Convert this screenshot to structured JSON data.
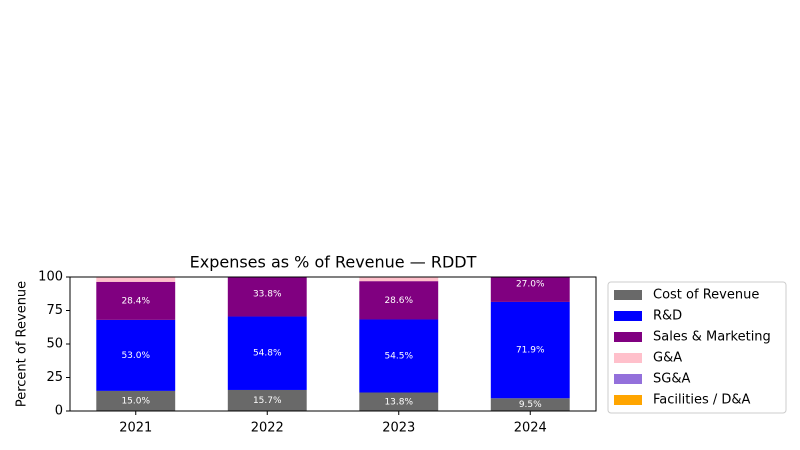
{
  "chart_data": {
    "type": "stacked_bar",
    "title": "Expenses as % of Revenue — RDDT",
    "ylabel": "Percent of Revenue",
    "categories": [
      "2021",
      "2022",
      "2023",
      "2024"
    ],
    "series": [
      {
        "name": "Cost of Revenue",
        "color": "#696969",
        "values": [
          15.0,
          15.7,
          13.8,
          9.5
        ],
        "value_labels": [
          "15.0%",
          "15.7%",
          "13.8%",
          "9.5%"
        ]
      },
      {
        "name": "R&D",
        "color": "#0000ff",
        "values": [
          53.0,
          54.8,
          54.5,
          71.9
        ],
        "value_labels": [
          "53.0%",
          "54.8%",
          "54.5%",
          "71.9%"
        ]
      },
      {
        "name": "Sales & Marketing",
        "color": "#800080",
        "values": [
          28.4,
          33.8,
          28.6,
          27.0
        ],
        "value_labels": [
          "28.4%",
          "33.8%",
          "28.6%",
          "27.0%"
        ]
      },
      {
        "name": "G&A",
        "color": "#ffc0cb",
        "values": [
          3.6,
          null,
          3.1,
          null
        ]
      },
      {
        "name": "SG&A",
        "color": "#9370db",
        "values": [
          null,
          null,
          null,
          null
        ]
      },
      {
        "name": "Facilities / D&A",
        "color": "#ffa500",
        "values": [
          null,
          null,
          null,
          null
        ]
      }
    ],
    "ylim": [
      0,
      100
    ],
    "yticks": [
      0,
      25,
      50,
      75,
      100
    ],
    "grid": false,
    "legend": "outside right"
  }
}
